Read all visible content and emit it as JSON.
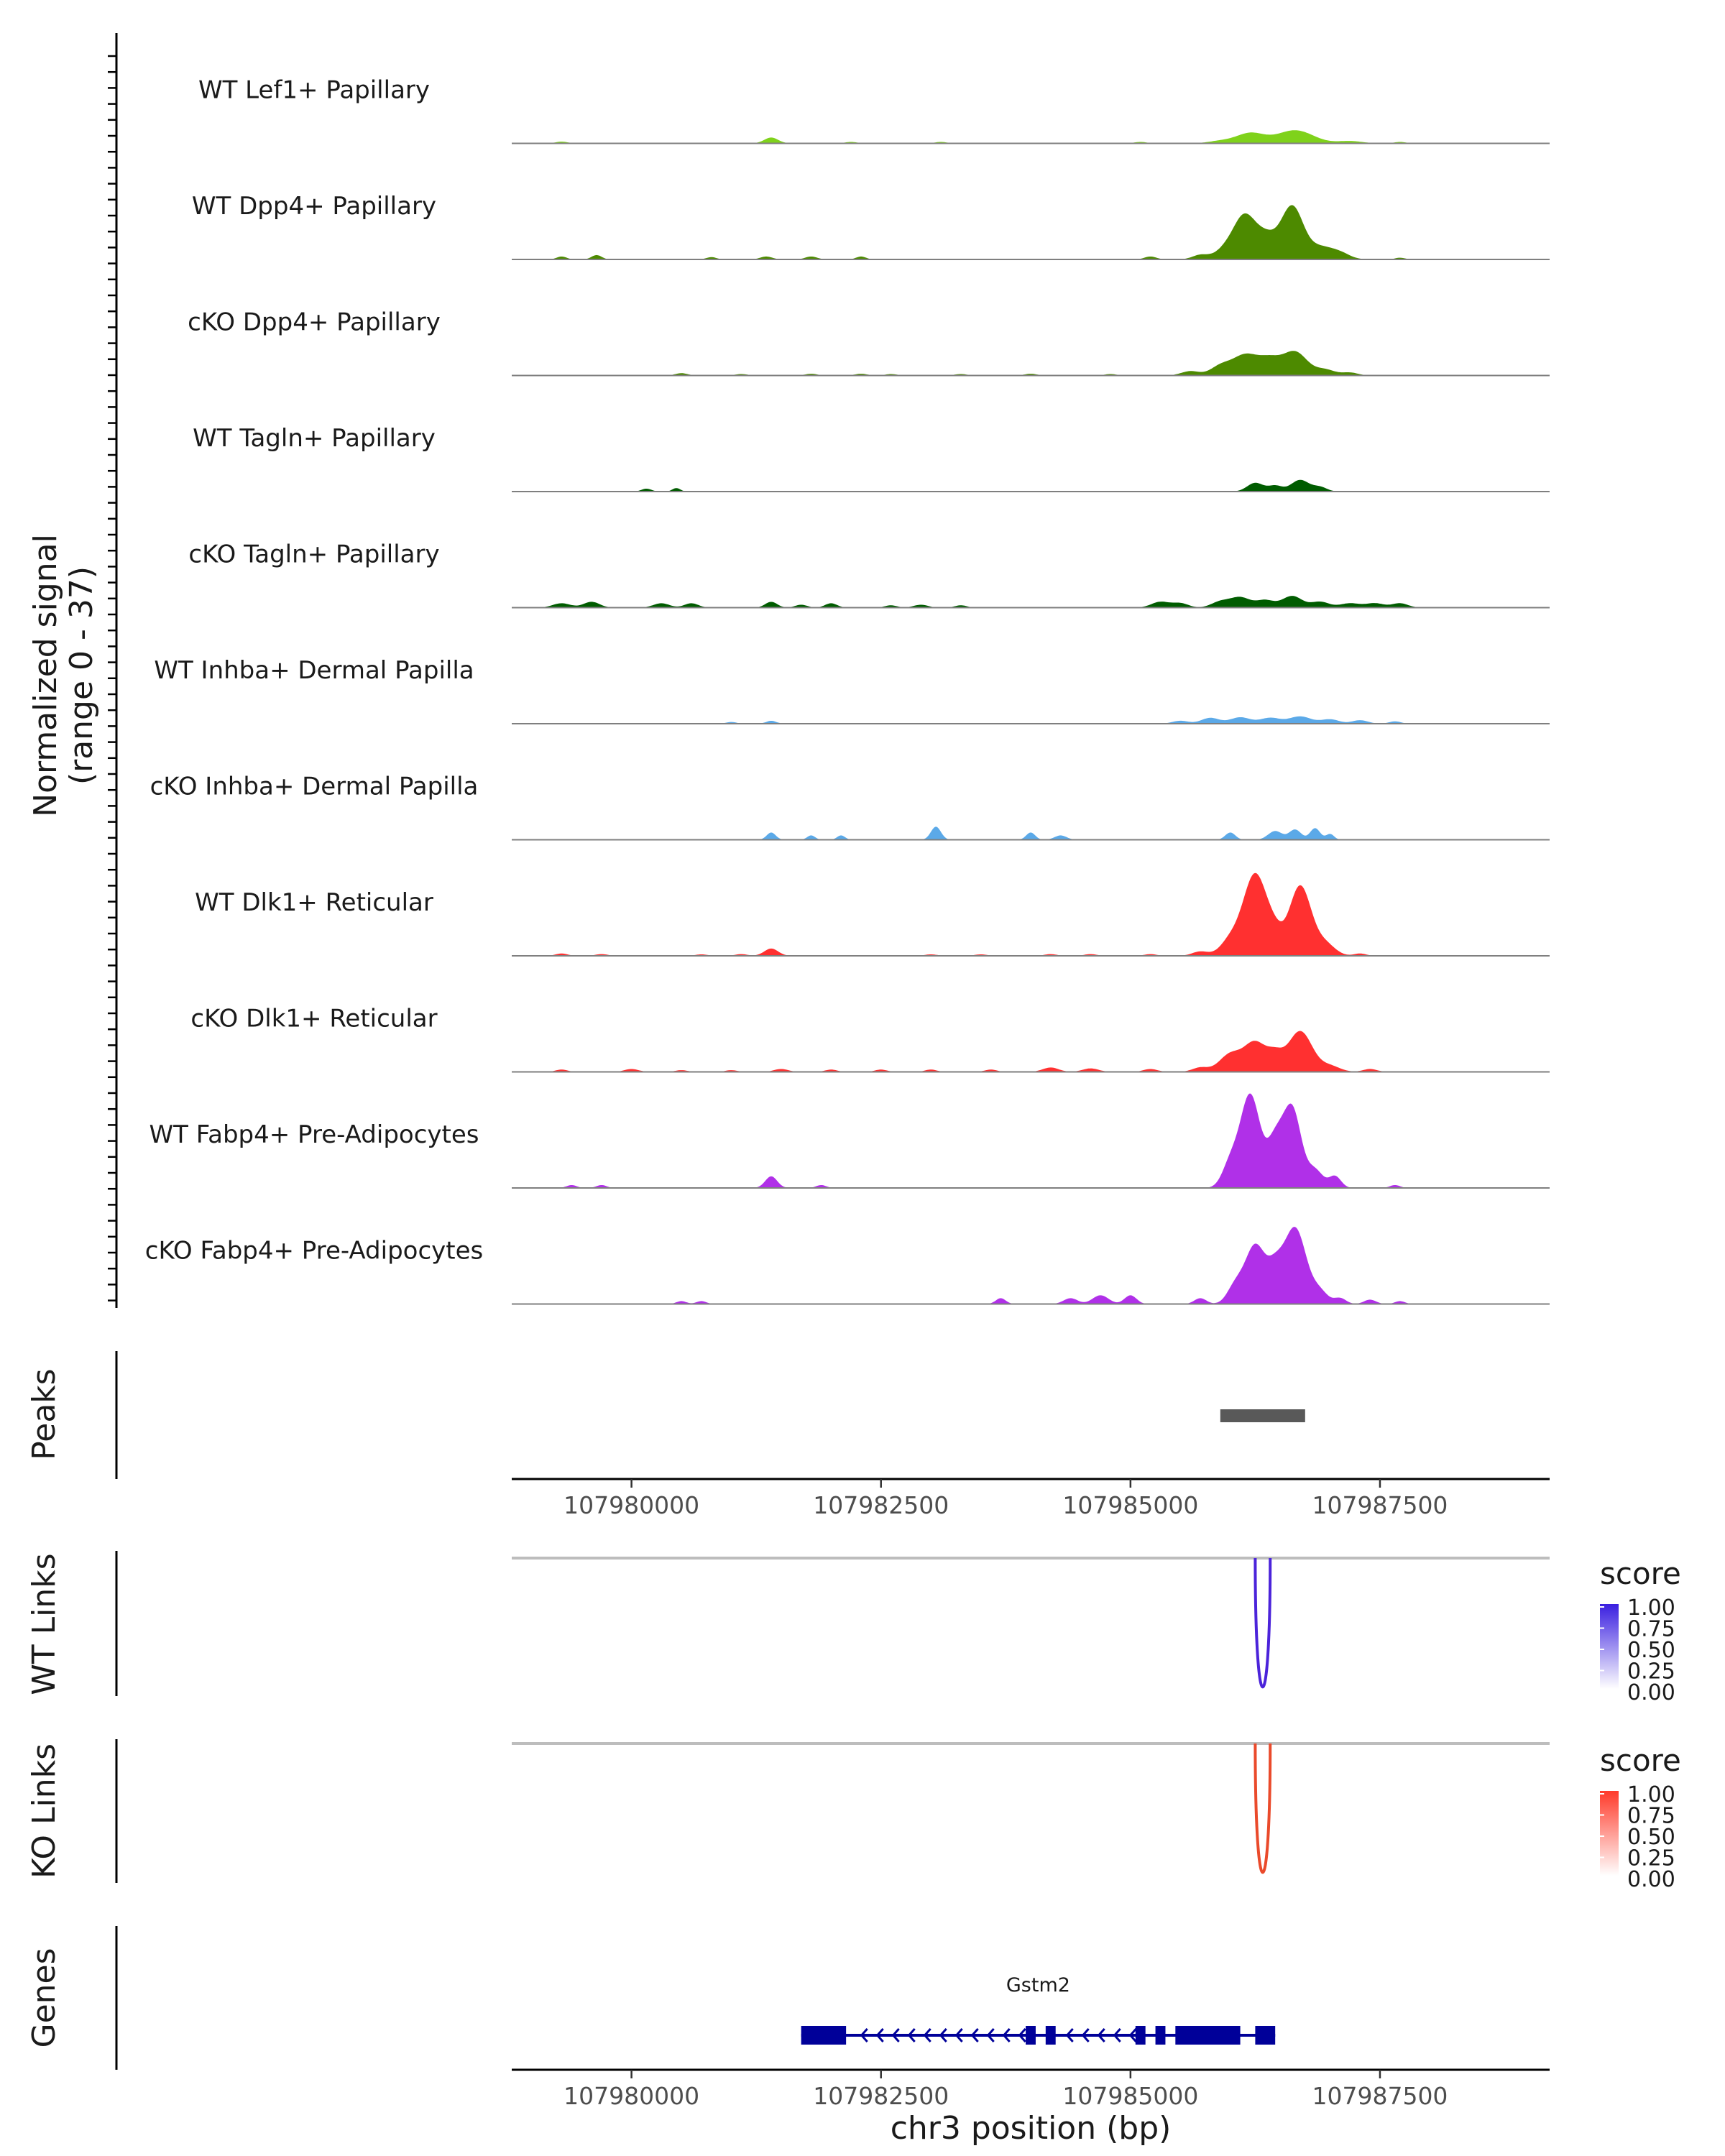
{
  "chart_data": {
    "type": "area",
    "title": "",
    "region": "chr3",
    "xlabel": "chr3 position (bp)",
    "xlim": [
      107978800,
      107989200
    ],
    "x_ticks": [
      107980000,
      107982500,
      107985000,
      107987500
    ],
    "x_tick_labels": [
      "107980000",
      "107982500",
      "107985000",
      "107987500"
    ],
    "coverage_ylabel_line1": "Normalized signal",
    "coverage_ylabel_line2": "(range 0 - 37)",
    "ylim": [
      0,
      37
    ],
    "series": [
      {
        "name": "WT Lef1+ Papillary",
        "color": "#7FD21B",
        "peaks": [
          [
            107979300,
            0.6,
            60
          ],
          [
            107981400,
            2,
            70
          ],
          [
            107982200,
            0.5,
            60
          ],
          [
            107983100,
            0.5,
            60
          ],
          [
            107985100,
            0.5,
            60
          ],
          [
            107985900,
            0.8,
            120
          ],
          [
            107986200,
            3.5,
            140
          ],
          [
            107986650,
            4.5,
            180
          ],
          [
            107987200,
            0.8,
            120
          ],
          [
            107987700,
            0.5,
            60
          ]
        ]
      },
      {
        "name": "WT Dpp4+ Papillary",
        "color": "#4D8A00",
        "peaks": [
          [
            107979300,
            1,
            50
          ],
          [
            107979650,
            1.5,
            50
          ],
          [
            107980800,
            0.8,
            50
          ],
          [
            107981350,
            1,
            60
          ],
          [
            107981800,
            1,
            60
          ],
          [
            107982300,
            1,
            50
          ],
          [
            107985200,
            1,
            60
          ],
          [
            107985700,
            1.5,
            80
          ],
          [
            107986000,
            5,
            120
          ],
          [
            107986150,
            12,
            100
          ],
          [
            107986350,
            8,
            110
          ],
          [
            107986620,
            18,
            110
          ],
          [
            107986900,
            4,
            120
          ],
          [
            107987100,
            2,
            100
          ],
          [
            107987700,
            0.6,
            50
          ]
        ]
      },
      {
        "name": "cKO Dpp4+ Papillary",
        "color": "#4D8A00",
        "peaks": [
          [
            107980500,
            0.8,
            60
          ],
          [
            107981100,
            0.5,
            60
          ],
          [
            107981800,
            0.6,
            60
          ],
          [
            107982300,
            0.6,
            60
          ],
          [
            107982600,
            0.5,
            60
          ],
          [
            107983300,
            0.5,
            60
          ],
          [
            107984000,
            0.6,
            60
          ],
          [
            107984800,
            0.5,
            60
          ],
          [
            107985600,
            1.5,
            90
          ],
          [
            107985900,
            3,
            100
          ],
          [
            107986150,
            7,
            130
          ],
          [
            107986400,
            5,
            110
          ],
          [
            107986650,
            8,
            120
          ],
          [
            107986950,
            2,
            100
          ],
          [
            107987200,
            1,
            80
          ]
        ]
      },
      {
        "name": "WT Tagln+ Papillary",
        "color": "#005C00",
        "peaks": [
          [
            107980150,
            1,
            50
          ],
          [
            107980450,
            1.2,
            40
          ],
          [
            107986250,
            3,
            80
          ],
          [
            107986450,
            2,
            70
          ],
          [
            107986700,
            4,
            90
          ],
          [
            107986900,
            1.5,
            70
          ]
        ]
      },
      {
        "name": "cKO Tagln+ Papillary",
        "color": "#005C00",
        "peaks": [
          [
            107979300,
            1.5,
            90
          ],
          [
            107979600,
            2,
            80
          ],
          [
            107980300,
            1.5,
            80
          ],
          [
            107980600,
            1.5,
            70
          ],
          [
            107981400,
            2,
            60
          ],
          [
            107981700,
            1,
            60
          ],
          [
            107982000,
            1.5,
            60
          ],
          [
            107982600,
            0.8,
            60
          ],
          [
            107982900,
            1,
            70
          ],
          [
            107983300,
            0.8,
            60
          ],
          [
            107985300,
            2,
            90
          ],
          [
            107985500,
            1.5,
            80
          ],
          [
            107985900,
            2,
            90
          ],
          [
            107986100,
            3.5,
            100
          ],
          [
            107986350,
            2.5,
            90
          ],
          [
            107986620,
            4,
            100
          ],
          [
            107986900,
            2,
            90
          ],
          [
            107987200,
            1.5,
            100
          ],
          [
            107987450,
            1.5,
            90
          ],
          [
            107987700,
            1.5,
            80
          ]
        ]
      },
      {
        "name": "WT Inhba+ Dermal Papilla",
        "color": "#5BA9E8",
        "peaks": [
          [
            107981000,
            0.6,
            50
          ],
          [
            107981400,
            1,
            50
          ],
          [
            107985500,
            1,
            80
          ],
          [
            107985800,
            2,
            90
          ],
          [
            107986100,
            2.2,
            100
          ],
          [
            107986400,
            2,
            100
          ],
          [
            107986700,
            2.5,
            110
          ],
          [
            107987000,
            1.5,
            90
          ],
          [
            107987300,
            1.2,
            80
          ],
          [
            107987650,
            0.8,
            60
          ]
        ]
      },
      {
        "name": "cKO Inhba+ Dermal Papilla",
        "color": "#5BA9E8",
        "peaks": [
          [
            107981400,
            2.5,
            45
          ],
          [
            107981800,
            1.5,
            40
          ],
          [
            107982100,
            1.5,
            40
          ],
          [
            107983050,
            4.5,
            50
          ],
          [
            107984000,
            2.5,
            45
          ],
          [
            107984300,
            1.5,
            60
          ],
          [
            107986000,
            2.5,
            50
          ],
          [
            107986450,
            3,
            70
          ],
          [
            107986650,
            3.5,
            60
          ],
          [
            107986850,
            4,
            50
          ],
          [
            107987000,
            2,
            40
          ]
        ]
      },
      {
        "name": "WT Dlk1+ Reticular",
        "color": "#FF3030",
        "peaks": [
          [
            107979300,
            0.8,
            60
          ],
          [
            107979700,
            0.6,
            60
          ],
          [
            107980700,
            0.5,
            60
          ],
          [
            107981100,
            0.6,
            60
          ],
          [
            107981400,
            2.5,
            70
          ],
          [
            107983000,
            0.5,
            60
          ],
          [
            107983500,
            0.5,
            60
          ],
          [
            107984200,
            0.6,
            60
          ],
          [
            107984600,
            0.6,
            60
          ],
          [
            107985200,
            0.6,
            60
          ],
          [
            107985700,
            1.5,
            80
          ],
          [
            107986000,
            5,
            100
          ],
          [
            107986250,
            28,
            120
          ],
          [
            107986450,
            5,
            80
          ],
          [
            107986700,
            24,
            110
          ],
          [
            107986950,
            4,
            100
          ],
          [
            107987300,
            0.8,
            60
          ]
        ]
      },
      {
        "name": "cKO Dlk1+ Reticular",
        "color": "#FF3030",
        "peaks": [
          [
            107979300,
            0.8,
            60
          ],
          [
            107980000,
            1,
            70
          ],
          [
            107980500,
            0.6,
            60
          ],
          [
            107981000,
            0.6,
            60
          ],
          [
            107981500,
            1,
            70
          ],
          [
            107982000,
            0.8,
            60
          ],
          [
            107982500,
            0.8,
            60
          ],
          [
            107983000,
            0.8,
            60
          ],
          [
            107983600,
            0.8,
            60
          ],
          [
            107984200,
            1.5,
            80
          ],
          [
            107984600,
            1.2,
            80
          ],
          [
            107985200,
            1,
            70
          ],
          [
            107985700,
            1.5,
            80
          ],
          [
            107986000,
            6,
            110
          ],
          [
            107986250,
            10,
            110
          ],
          [
            107986450,
            5,
            80
          ],
          [
            107986700,
            14,
            120
          ],
          [
            107987000,
            2,
            100
          ],
          [
            107987400,
            1,
            70
          ]
        ]
      },
      {
        "name": "WT Fabp4+ Pre-Adipocytes",
        "color": "#B030E8",
        "peaks": [
          [
            107979400,
            1,
            50
          ],
          [
            107979700,
            1,
            50
          ],
          [
            107981400,
            4,
            60
          ],
          [
            107981900,
            1,
            50
          ],
          [
            107986000,
            8,
            80
          ],
          [
            107986200,
            32,
            100
          ],
          [
            107986450,
            15,
            80
          ],
          [
            107986620,
            27,
            90
          ],
          [
            107986850,
            6,
            80
          ],
          [
            107987050,
            4,
            60
          ],
          [
            107987650,
            1,
            50
          ]
        ]
      },
      {
        "name": "cKO Fabp4+ Pre-Adipocytes",
        "color": "#B030E8",
        "peaks": [
          [
            107980500,
            1,
            50
          ],
          [
            107980700,
            1,
            50
          ],
          [
            107983700,
            2,
            50
          ],
          [
            107984400,
            2,
            70
          ],
          [
            107984700,
            3,
            80
          ],
          [
            107985000,
            3,
            60
          ],
          [
            107985700,
            2,
            60
          ],
          [
            107986050,
            6,
            80
          ],
          [
            107986250,
            20,
            100
          ],
          [
            107986450,
            10,
            80
          ],
          [
            107986650,
            26,
            110
          ],
          [
            107986900,
            4,
            80
          ],
          [
            107987100,
            2,
            60
          ],
          [
            107987400,
            1.5,
            60
          ],
          [
            107987700,
            1,
            50
          ]
        ]
      }
    ],
    "peaks_track": {
      "label": "Peaks",
      "start": 107985900,
      "end": 107986750,
      "color": "#595959"
    },
    "links_tracks": [
      {
        "label": "WT Links",
        "start": 107986250,
        "end": 107986400,
        "score": 1.0,
        "color": "#4B23DA"
      },
      {
        "label": "KO Links",
        "start": 107986250,
        "end": 107986400,
        "score": 1.0,
        "color": "#EA4A2B"
      }
    ],
    "legends": [
      {
        "title": "score",
        "ticks": [
          "1.00",
          "0.75",
          "0.50",
          "0.25",
          "0.00"
        ],
        "low_color": "#FFFFFF",
        "high_color": "#3A1FE0"
      },
      {
        "title": "score",
        "ticks": [
          "1.00",
          "0.75",
          "0.50",
          "0.25",
          "0.00"
        ],
        "low_color": "#FFFFFF",
        "high_color": "#FF3A2A"
      }
    ],
    "genes_track": {
      "label": "Genes",
      "gene": "Gstm2",
      "strand": "-",
      "start": 107981700,
      "end": 107986450,
      "color": "#000099",
      "exons": [
        [
          107981700,
          107982150
        ],
        [
          107983950,
          107984050
        ],
        [
          107984150,
          107984250
        ],
        [
          107985050,
          107985150
        ],
        [
          107985250,
          107985350
        ],
        [
          107985450,
          107986100
        ],
        [
          107986250,
          107986450
        ]
      ]
    }
  }
}
